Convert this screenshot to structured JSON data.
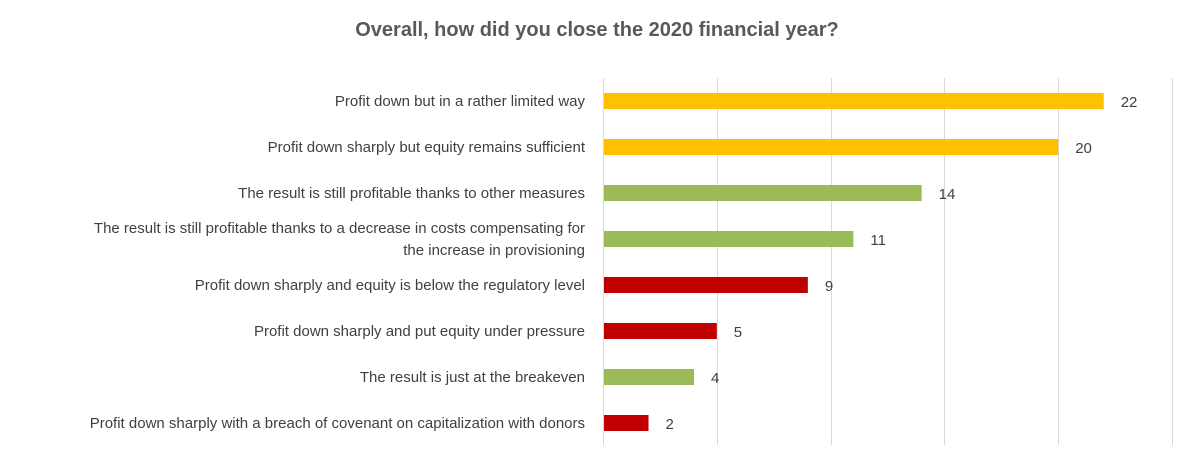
{
  "chart_data": {
    "type": "bar",
    "orientation": "horizontal",
    "title": "Overall, how did you close the 2020 financial year?",
    "categories": [
      [
        "Profit down but in a rather limited way"
      ],
      [
        "Profit down sharply but equity remains sufficient"
      ],
      [
        "The result is still profitable thanks to other measures"
      ],
      [
        "The result is still profitable thanks to a decrease in costs compensating for",
        "the increase in provisioning"
      ],
      [
        "Profit down sharply and equity is below the regulatory level"
      ],
      [
        "Profit down sharply and put equity under pressure"
      ],
      [
        "The result is just at the breakeven"
      ],
      [
        "Profit down sharply with a breach of covenant on capitalization with donors"
      ]
    ],
    "values": [
      22,
      20,
      14,
      11,
      9,
      5,
      4,
      2
    ],
    "bar_colors": [
      "#FFC000",
      "#FFC000",
      "#9BBB59",
      "#9BBB59",
      "#C00000",
      "#C00000",
      "#9BBB59",
      "#C00000"
    ],
    "xlim": [
      0,
      25
    ],
    "xaxis_visible": false,
    "grid": true,
    "gridline_step": 5,
    "data_labels": true,
    "legend": "none"
  }
}
